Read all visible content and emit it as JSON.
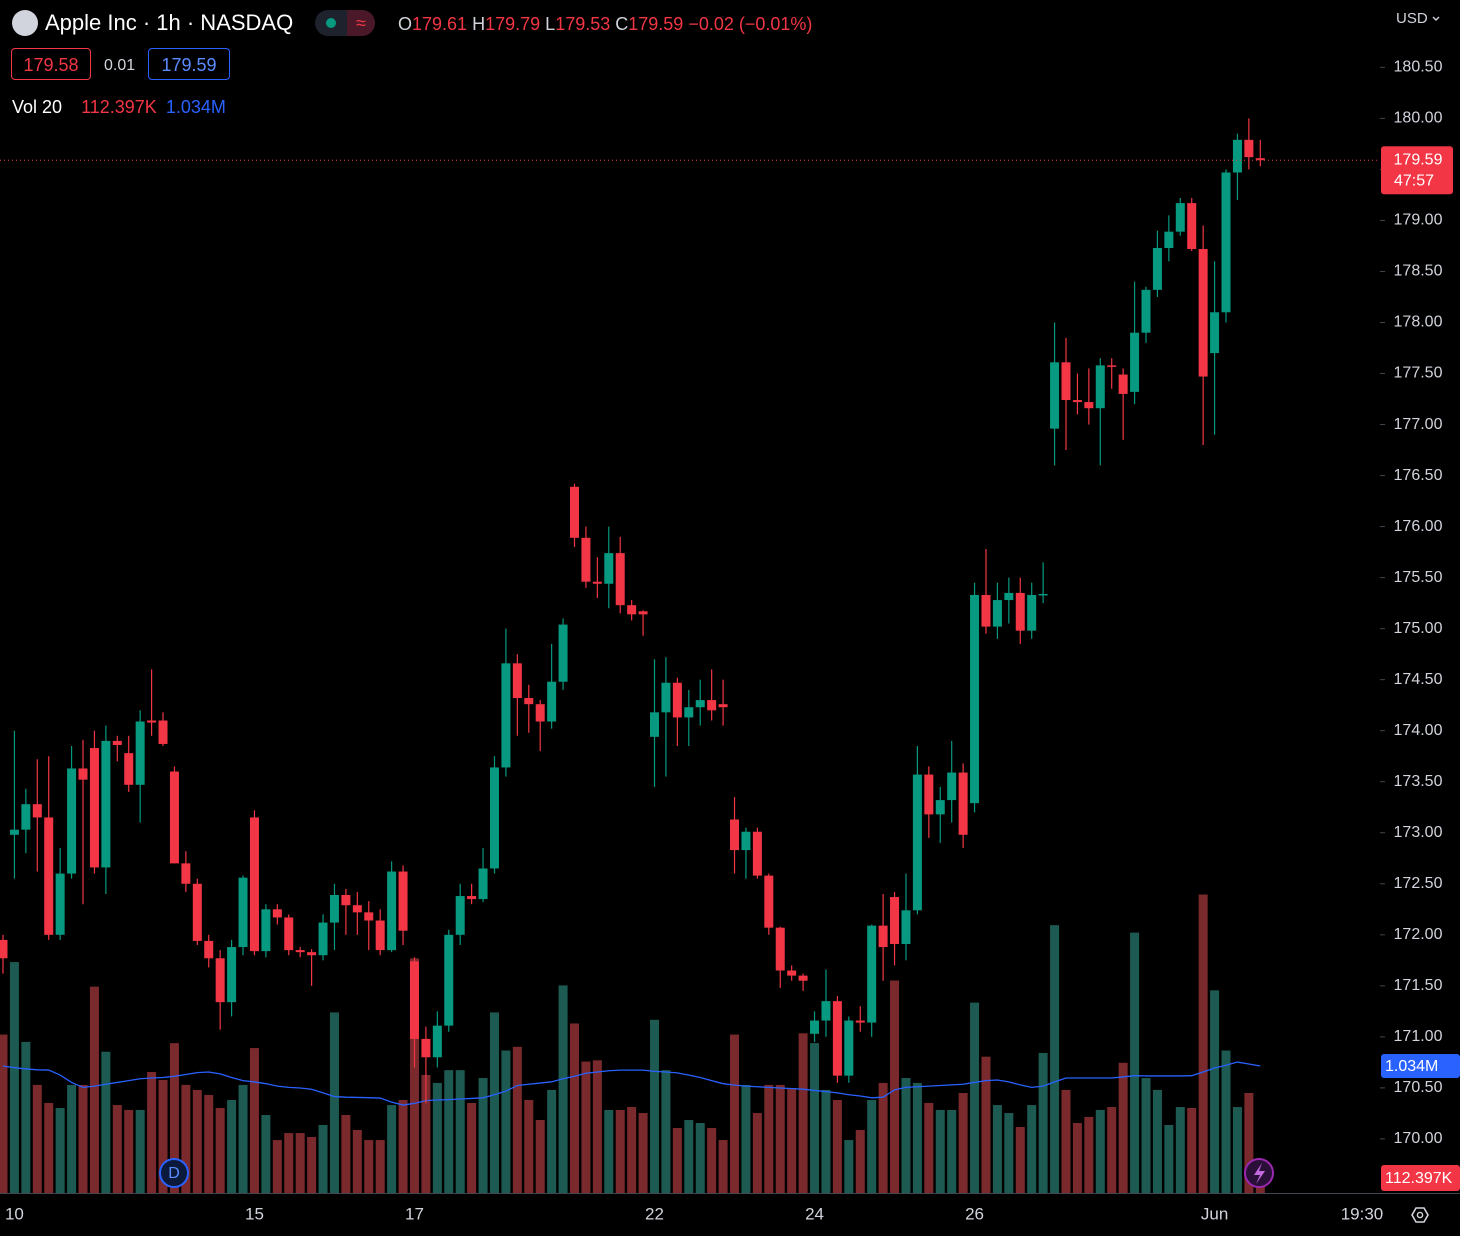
{
  "chart_data": {
    "type": "candlestick",
    "title": "Apple Inc · 1h · NASDAQ",
    "currency": "USD",
    "ohlc_letters": [
      "O",
      "H",
      "L",
      "C"
    ],
    "change_label": "−0.02 (−0.01%)",
    "bid": 179.58,
    "spread": 0.01,
    "ask": 179.59,
    "countdown": "47:57",
    "time_axis_last_label": "19:30",
    "up_color": "#089981",
    "down_color": "#f23645",
    "ylim": [
      169.47,
      181.16
    ],
    "yticks": [
      {
        "value": 170,
        "label": "170.00"
      },
      {
        "value": 170.5,
        "label": "170.50"
      },
      {
        "value": 171,
        "label": "171.00"
      },
      {
        "value": 171.5,
        "label": "171.50"
      },
      {
        "value": 172,
        "label": "172.00"
      },
      {
        "value": 172.5,
        "label": "172.50"
      },
      {
        "value": 173,
        "label": "173.00"
      },
      {
        "value": 173.5,
        "label": "173.50"
      },
      {
        "value": 174,
        "label": "174.00"
      },
      {
        "value": 174.5,
        "label": "174.50"
      },
      {
        "value": 175,
        "label": "175.00"
      },
      {
        "value": 175.5,
        "label": "175.50"
      },
      {
        "value": 176,
        "label": "176.00"
      },
      {
        "value": 176.5,
        "label": "176.50"
      },
      {
        "value": 177,
        "label": "177.00"
      },
      {
        "value": 177.5,
        "label": "177.50"
      },
      {
        "value": 178,
        "label": "178.00"
      },
      {
        "value": 178.5,
        "label": "178.50"
      },
      {
        "value": 179,
        "label": "179.00"
      },
      {
        "value": 179.5,
        "label": "179.50"
      },
      {
        "value": 180,
        "label": "180.00"
      },
      {
        "value": 180.5,
        "label": "180.50"
      }
    ],
    "categories": [
      null,
      "10",
      null,
      null,
      null,
      null,
      null,
      null,
      null,
      null,
      null,
      null,
      null,
      null,
      null,
      null,
      null,
      null,
      null,
      null,
      null,
      null,
      "15",
      null,
      null,
      null,
      null,
      null,
      null,
      null,
      null,
      null,
      null,
      null,
      null,
      null,
      "17",
      null,
      null,
      null,
      null,
      null,
      null,
      null,
      null,
      null,
      null,
      null,
      null,
      null,
      null,
      null,
      null,
      null,
      null,
      null,
      null,
      "22",
      null,
      null,
      null,
      null,
      null,
      null,
      null,
      null,
      null,
      null,
      null,
      null,
      null,
      "24",
      null,
      null,
      null,
      null,
      null,
      null,
      null,
      null,
      null,
      null,
      null,
      null,
      null,
      "26",
      null,
      null,
      null,
      null,
      null,
      null,
      null,
      null,
      null,
      null,
      null,
      null,
      null,
      null,
      null,
      null,
      null,
      null,
      null,
      null,
      "Jun",
      null,
      null,
      null,
      null
    ],
    "open": [
      171.95,
      172.98,
      173.03,
      173.28,
      173.15,
      172.0,
      172.6,
      173.63,
      173.83,
      172.66,
      173.9,
      173.78,
      173.47,
      174.1,
      174.1,
      173.6,
      172.7,
      172.5,
      171.94,
      171.77,
      171.34,
      171.88,
      173.15,
      171.84,
      172.25,
      172.17,
      171.85,
      171.83,
      171.8,
      172.12,
      172.39,
      172.29,
      172.22,
      172.14,
      171.85,
      172.62,
      171.74,
      170.98,
      170.8,
      171.11,
      172.0,
      172.38,
      172.35,
      172.65,
      173.64,
      174.66,
      174.32,
      174.26,
      174.09,
      174.48,
      176.39,
      175.89,
      175.46,
      175.44,
      175.74,
      175.23,
      175.17,
      173.94,
      174.18,
      174.47,
      174.13,
      174.23,
      174.3,
      174.26,
      173.13,
      172.83,
      173.01,
      172.58,
      172.07,
      171.65,
      171.6,
      171.03,
      171.16,
      171.35,
      170.62,
      171.16,
      171.14,
      172.09,
      172.37,
      171.91,
      172.24,
      173.57,
      173.18,
      173.32,
      173.59,
      173.29,
      175.33,
      175.02,
      175.28,
      175.35,
      174.98,
      175.33,
      176.96,
      177.61,
      177.24,
      177.22,
      177.16,
      177.58,
      177.49,
      177.32,
      177.9,
      178.32,
      178.73,
      178.89,
      179.17,
      178.72,
      177.7,
      178.1,
      179.47,
      179.79,
      179.61
    ],
    "high": [
      172.0,
      174.0,
      173.43,
      173.72,
      173.75,
      172.85,
      173.85,
      173.91,
      174.0,
      174.05,
      173.95,
      173.95,
      174.2,
      174.6,
      174.18,
      173.65,
      172.82,
      172.55,
      172.0,
      171.85,
      171.95,
      172.58,
      173.22,
      172.3,
      172.3,
      172.2,
      171.88,
      171.86,
      172.2,
      172.5,
      172.45,
      172.42,
      172.33,
      172.25,
      172.72,
      172.68,
      171.78,
      171.1,
      171.25,
      172.05,
      172.5,
      172.5,
      172.85,
      173.75,
      175.0,
      174.75,
      174.45,
      174.3,
      174.85,
      175.1,
      176.42,
      176.0,
      175.7,
      176.0,
      175.9,
      175.28,
      175.18,
      174.7,
      174.72,
      174.52,
      174.4,
      174.5,
      174.6,
      174.5,
      173.35,
      173.05,
      173.05,
      172.6,
      172.08,
      171.7,
      171.62,
      171.25,
      171.66,
      171.4,
      171.2,
      171.3,
      172.1,
      172.4,
      172.42,
      172.6,
      173.85,
      173.65,
      173.45,
      173.9,
      173.68,
      175.45,
      175.78,
      175.45,
      175.5,
      175.5,
      175.45,
      175.65,
      178.0,
      177.85,
      177.5,
      177.55,
      177.65,
      177.65,
      177.55,
      178.4,
      178.35,
      178.9,
      179.05,
      179.22,
      179.22,
      178.95,
      178.6,
      179.5,
      179.85,
      180.0,
      179.79
    ],
    "low": [
      171.62,
      172.55,
      172.8,
      172.62,
      171.95,
      171.95,
      172.55,
      172.3,
      172.6,
      172.4,
      173.7,
      173.4,
      173.1,
      173.95,
      173.85,
      172.7,
      172.42,
      171.9,
      171.68,
      171.07,
      171.2,
      171.8,
      171.8,
      171.78,
      172.1,
      171.8,
      171.78,
      171.5,
      171.75,
      171.85,
      172.0,
      172.0,
      171.85,
      171.8,
      171.83,
      171.9,
      170.7,
      170.35,
      170.7,
      171.05,
      171.9,
      172.3,
      172.32,
      172.6,
      173.55,
      173.95,
      173.98,
      173.8,
      174.02,
      174.4,
      175.8,
      175.4,
      175.3,
      175.2,
      175.15,
      175.08,
      174.93,
      173.45,
      173.55,
      173.85,
      173.85,
      174.05,
      174.1,
      174.05,
      172.6,
      172.55,
      172.55,
      172.0,
      171.48,
      171.55,
      171.45,
      170.95,
      171.0,
      170.55,
      170.55,
      171.05,
      171.0,
      171.55,
      171.7,
      171.75,
      172.2,
      172.95,
      172.9,
      173.1,
      172.85,
      173.2,
      174.95,
      174.9,
      175.05,
      174.85,
      174.9,
      175.25,
      176.6,
      176.75,
      177.1,
      177.0,
      176.6,
      177.35,
      176.85,
      177.2,
      177.8,
      178.25,
      178.6,
      178.85,
      178.7,
      176.8,
      176.9,
      178.0,
      179.2,
      179.5,
      179.53
    ],
    "close": [
      171.77,
      173.03,
      173.28,
      173.15,
      172.0,
      172.6,
      173.63,
      173.52,
      172.66,
      173.9,
      173.86,
      173.47,
      174.09,
      174.08,
      173.87,
      172.7,
      172.5,
      171.94,
      171.77,
      171.34,
      171.88,
      172.56,
      171.84,
      172.25,
      172.17,
      171.85,
      171.83,
      171.8,
      172.12,
      172.39,
      172.29,
      172.22,
      172.14,
      171.85,
      172.62,
      172.04,
      170.98,
      170.8,
      171.11,
      172.0,
      172.38,
      172.35,
      172.65,
      173.64,
      174.66,
      174.32,
      174.26,
      174.09,
      174.48,
      175.04,
      175.89,
      175.46,
      175.44,
      175.74,
      175.23,
      175.14,
      175.14,
      174.18,
      174.47,
      174.13,
      174.23,
      174.3,
      174.2,
      174.23,
      172.83,
      173.01,
      172.58,
      172.07,
      171.65,
      171.6,
      171.55,
      171.16,
      171.35,
      170.62,
      171.16,
      171.14,
      172.09,
      171.88,
      171.91,
      172.24,
      173.57,
      173.18,
      173.32,
      173.59,
      172.98,
      175.33,
      175.02,
      175.28,
      175.35,
      174.98,
      175.33,
      175.34,
      177.61,
      177.24,
      177.22,
      177.16,
      177.58,
      177.57,
      177.3,
      177.9,
      178.32,
      178.73,
      178.89,
      179.17,
      178.72,
      177.47,
      178.1,
      179.47,
      179.79,
      179.62,
      179.59
    ],
    "volume": {
      "label": "Vol 20",
      "up_color": "#1d5a52",
      "down_color": "#7a2a2c",
      "ma_color": "#2962ff",
      "y2lim": [
        0,
        9712000
      ],
      "values": [
        1290000,
        1880000,
        1230000,
        880000,
        733000,
        692000,
        880000,
        880000,
        1680000,
        1150000,
        716000,
        676000,
        676000,
        985000,
        920000,
        1220000,
        880000,
        839000,
        798000,
        692000,
        757000,
        880000,
        1180000,
        635000,
        431000,
        488000,
        488000,
        456000,
        554000,
        1470000,
        635000,
        513000,
        431000,
        431000,
        716000,
        757000,
        1910000,
        961000,
        896000,
        1000000,
        1000000,
        733000,
        936000,
        1470000,
        1160000,
        1190000,
        757000,
        594000,
        839000,
        1690000,
        1380000,
        1070000,
        1080000,
        676000,
        676000,
        700000,
        651000,
        1410000,
        1000000,
        529000,
        594000,
        570000,
        529000,
        431000,
        1290000,
        880000,
        651000,
        880000,
        880000,
        855000,
        1300000,
        1220000,
        839000,
        757000,
        431000,
        513000,
        757000,
        896000,
        1730000,
        936000,
        896000,
        733000,
        676000,
        676000,
        814000,
        1550000,
        1110000,
        716000,
        651000,
        537000,
        716000,
        1140000,
        2180000,
        839000,
        570000,
        619000,
        676000,
        700000,
        1060000,
        2120000,
        936000,
        839000,
        554000,
        700000,
        692000,
        2430000,
        1650000,
        1160000,
        700000,
        814000,
        112397
      ],
      "last_label": "112.397K",
      "ma_values": [
        1034000,
        1020000,
        1010000,
        1003000,
        1001000,
        960000,
        900000,
        860000,
        870000,
        885000,
        900000,
        915000,
        930000,
        936000,
        940000,
        950000,
        965000,
        980000,
        985000,
        970000,
        940000,
        915000,
        904000,
        890000,
        870000,
        860000,
        855000,
        845000,
        815000,
        785000,
        780000,
        778000,
        776000,
        773000,
        740000,
        716000,
        730000,
        752000,
        757000,
        760000,
        765000,
        770000,
        775000,
        800000,
        830000,
        875000,
        885000,
        895000,
        905000,
        930000,
        950000,
        975000,
        985000,
        995000,
        1000000,
        1000000,
        1000000,
        990000,
        985000,
        978000,
        960000,
        940000,
        915000,
        890000,
        878000,
        870000,
        865000,
        860000,
        855000,
        850000,
        845000,
        835000,
        825000,
        815000,
        800000,
        790000,
        775000,
        780000,
        840000,
        860000,
        865000,
        870000,
        875000,
        880000,
        885000,
        900000,
        915000,
        920000,
        905000,
        880000,
        860000,
        870000,
        905000,
        936000,
        936000,
        936000,
        936000,
        936000,
        945000,
        955000,
        953000,
        953000,
        953000,
        953000,
        955000,
        985000,
        1018000,
        1040000,
        1066000,
        1050000,
        1034000
      ],
      "ma_last_label": "1.034M"
    }
  }
}
